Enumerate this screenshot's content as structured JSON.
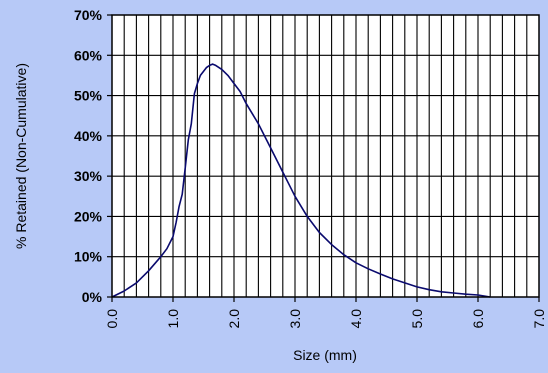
{
  "chart_data": {
    "type": "line",
    "title": "",
    "xlabel": "Size (mm)",
    "ylabel": "% Retained (Non-Cumulative)",
    "xlim": [
      0,
      7
    ],
    "ylim": [
      0,
      70
    ],
    "x_ticks": [
      0,
      1,
      2,
      3,
      4,
      5,
      6,
      7
    ],
    "x_tick_labels": [
      "0.0",
      "1.0",
      "2.0",
      "3.0",
      "4.0",
      "5.0",
      "6.0",
      "7.0"
    ],
    "y_ticks": [
      0,
      10,
      20,
      30,
      40,
      50,
      60,
      70
    ],
    "y_tick_labels": [
      "0%",
      "10%",
      "20%",
      "30%",
      "40%",
      "50%",
      "60%",
      "70%"
    ],
    "grid": true,
    "minor_x_step": 0.2,
    "legend": "none",
    "colors": {
      "background": "#b7c9f7",
      "plot_area": "#ffffff",
      "grid": "#000000",
      "line": "#0a0a6e"
    },
    "series": [
      {
        "x": [
          0.0,
          0.2,
          0.4,
          0.6,
          0.8,
          0.9,
          1.0,
          1.05,
          1.1,
          1.15,
          1.2,
          1.25,
          1.3,
          1.35,
          1.4,
          1.45,
          1.5,
          1.55,
          1.6,
          1.65,
          1.7,
          1.8,
          1.9,
          2.0,
          2.1,
          2.2,
          2.3,
          2.4,
          2.5,
          2.6,
          2.7,
          2.8,
          2.9,
          3.0,
          3.2,
          3.4,
          3.6,
          3.8,
          4.0,
          4.2,
          4.4,
          4.6,
          4.8,
          5.0,
          5.2,
          5.4,
          5.6,
          5.8,
          6.0,
          6.2
        ],
        "y": [
          0.0,
          1.5,
          3.5,
          6.5,
          10.0,
          12.0,
          15.0,
          18.5,
          22.5,
          25.5,
          32.0,
          39.0,
          43.0,
          50.5,
          53.0,
          55.0,
          56.0,
          57.0,
          57.5,
          57.8,
          57.5,
          56.5,
          55.0,
          53.0,
          51.0,
          48.0,
          45.5,
          43.0,
          40.0,
          37.0,
          34.0,
          31.0,
          28.0,
          25.0,
          20.0,
          16.0,
          13.0,
          10.5,
          8.5,
          7.0,
          5.7,
          4.5,
          3.5,
          2.5,
          1.8,
          1.3,
          1.0,
          0.7,
          0.5,
          0.0
        ]
      }
    ]
  }
}
